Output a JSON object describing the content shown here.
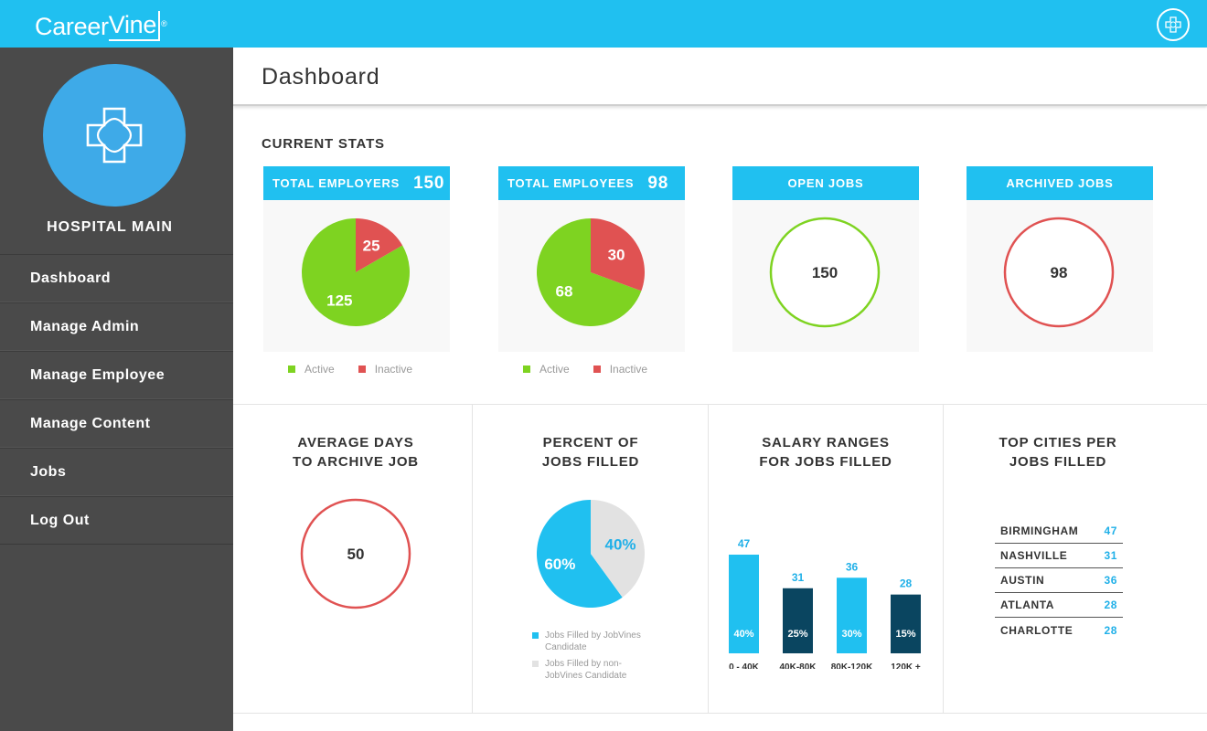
{
  "app": {
    "brand_prefix": "Career",
    "brand_suffix": "Vine",
    "brand_mark": "®"
  },
  "sidebar": {
    "org_name": "HOSPITAL MAIN",
    "items": [
      {
        "label": "Dashboard"
      },
      {
        "label": "Manage Admin"
      },
      {
        "label": "Manage Employee"
      },
      {
        "label": "Manage Content"
      },
      {
        "label": "Jobs"
      },
      {
        "label": "Log Out"
      }
    ]
  },
  "page": {
    "title": "Dashboard",
    "section_title": "CURRENT STATS"
  },
  "colors": {
    "accent": "#20c0f0",
    "active": "#7ed321",
    "inactive": "#e05252",
    "dark_bar": "#0a4560",
    "light_gray": "#e2e2e2"
  },
  "stats": {
    "employers": {
      "label": "TOTAL EMPLOYERS",
      "total": "150",
      "active": "125",
      "inactive": "25"
    },
    "employees": {
      "label": "TOTAL EMPLOYEES",
      "total": "98",
      "active": "68",
      "inactive": "30"
    },
    "open_jobs": {
      "label": "OPEN JOBS",
      "value": "150"
    },
    "archived_jobs": {
      "label": "ARCHIVED JOBS",
      "value": "98"
    },
    "legend": {
      "active": "Active",
      "inactive": "Inactive"
    }
  },
  "panels": {
    "avg_days": {
      "title_line1": "AVERAGE DAYS",
      "title_line2": "TO ARCHIVE JOB",
      "value": "50"
    },
    "percent_filled": {
      "title_line1": "PERCENT OF",
      "title_line2": "JOBS FILLED",
      "jobvines_label": "60%",
      "non_label": "40%",
      "legend_jobvines_1": "Jobs Filled by JobVines",
      "legend_jobvines_2": "Candidate",
      "legend_non_1": "Jobs Filled by non-",
      "legend_non_2": "JobVines Candidate"
    },
    "salary": {
      "title_line1": "SALARY RANGES",
      "title_line2": "FOR JOBS FILLED"
    },
    "cities": {
      "title_line1": "TOP CITIES PER",
      "title_line2": "JOBS FILLED",
      "rows": [
        {
          "city": "BIRMINGHAM",
          "value": "47"
        },
        {
          "city": "NASHVILLE",
          "value": "31"
        },
        {
          "city": "AUSTIN",
          "value": "36"
        },
        {
          "city": "ATLANTA",
          "value": "28"
        },
        {
          "city": "CHARLOTTE",
          "value": "28"
        }
      ]
    }
  },
  "chart_data": [
    {
      "type": "pie",
      "title": "TOTAL EMPLOYERS",
      "categories": [
        "Active",
        "Inactive"
      ],
      "values": [
        125,
        25
      ]
    },
    {
      "type": "pie",
      "title": "TOTAL EMPLOYEES",
      "categories": [
        "Active",
        "Inactive"
      ],
      "values": [
        68,
        30
      ]
    },
    {
      "type": "pie",
      "title": "PERCENT OF JOBS FILLED",
      "categories": [
        "Jobs Filled by JobVines Candidate",
        "Jobs Filled by non-JobVines Candidate"
      ],
      "values": [
        60,
        40
      ]
    },
    {
      "type": "bar",
      "title": "SALARY RANGES FOR JOBS FILLED",
      "categories": [
        "0 - 40K",
        "40K-80K",
        "80K-120K",
        "120K +"
      ],
      "values": [
        47,
        31,
        36,
        28
      ],
      "percent_labels": [
        "40%",
        "25%",
        "30%",
        "15%"
      ],
      "ylim": [
        0,
        47
      ],
      "grid": false
    }
  ]
}
